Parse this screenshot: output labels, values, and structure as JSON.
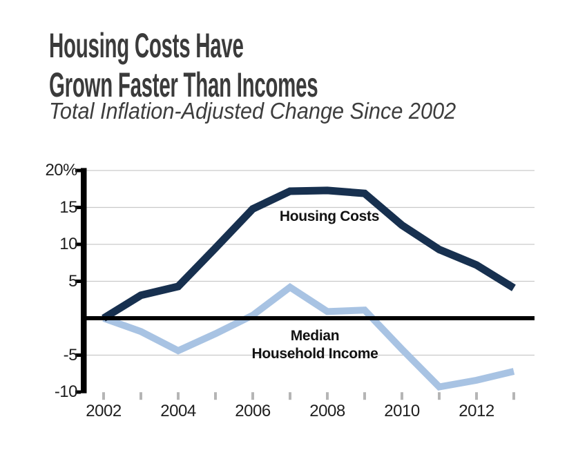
{
  "header": {
    "title_line1": "Housing Costs Have",
    "title_line2": "Grown Faster Than Incomes",
    "subtitle": "Total Inflation-Adjusted Change Since 2002"
  },
  "chart_data": {
    "type": "line",
    "title": "Housing Costs Have Grown Faster Than Incomes",
    "subtitle": "Total Inflation-Adjusted Change Since 2002",
    "x": [
      2002,
      2003,
      2004,
      2005,
      2006,
      2007,
      2008,
      2009,
      2010,
      2011,
      2012,
      2013
    ],
    "series": [
      {
        "name": "Housing Costs",
        "color": "#17304f",
        "values": [
          0,
          3.1,
          4.3,
          9.5,
          14.8,
          17.2,
          17.3,
          16.9,
          12.6,
          9.3,
          7.2,
          4.1
        ]
      },
      {
        "name": "Median Household Income",
        "color": "#a8c3e3",
        "values": [
          0,
          -1.8,
          -4.4,
          -2.1,
          0.4,
          4.2,
          0.9,
          1.1,
          -4.2,
          -9.3,
          -8.4,
          -7.2
        ]
      }
    ],
    "annotations": {
      "housing_label": "Housing Costs",
      "income_label_line1": "Median",
      "income_label_line2": "Household Income"
    },
    "y_axis": {
      "unit": "%",
      "range": [
        -10,
        20
      ],
      "ticks": [
        20,
        15,
        10,
        5,
        -5,
        -10
      ],
      "tick_labels": [
        "20%",
        "15",
        "10",
        "5",
        "-5",
        "-10"
      ],
      "gridline_ticks": [
        20,
        15,
        10,
        5,
        -5
      ],
      "zero_line": true
    },
    "x_axis": {
      "labeled_years": [
        2002,
        2004,
        2006,
        2008,
        2010,
        2012
      ],
      "minor_tick_years": [
        2002,
        2003,
        2004,
        2005,
        2006,
        2007,
        2008,
        2009,
        2010,
        2011,
        2012,
        2013
      ]
    },
    "legend": "inline-labels",
    "grid": "horizontal"
  }
}
